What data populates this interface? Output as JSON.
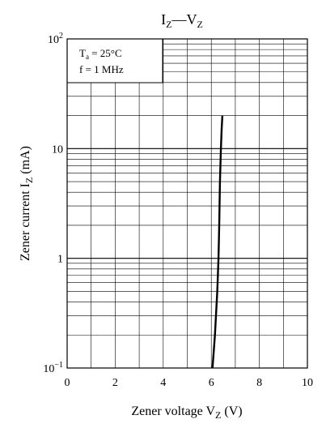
{
  "chart_data": {
    "type": "line",
    "title": "I_Z — V_Z",
    "title_parts": {
      "main1": "I",
      "sub1": "Z",
      "dash": "—",
      "main2": "V",
      "sub2": "Z"
    },
    "xlabel": "Zener voltage  V_Z  (V)",
    "xlabel_parts": {
      "main": "Zener voltage  V",
      "sub": "Z",
      "unit": "  (V)"
    },
    "ylabel": "Zener current  I_Z  (mA)",
    "ylabel_parts": {
      "main": "Zener current  I",
      "sub": "Z",
      "unit": "  (mA)"
    },
    "x_scale": "linear",
    "y_scale": "log",
    "xlim": [
      0,
      10
    ],
    "ylim": [
      0.1,
      100
    ],
    "x_ticks": [
      "0",
      "2",
      "4",
      "6",
      "8",
      "10"
    ],
    "y_ticks": [
      {
        "value": 0.1,
        "base": "10",
        "exp": "−1"
      },
      {
        "value": 1,
        "base": "1",
        "exp": ""
      },
      {
        "value": 10,
        "base": "10",
        "exp": ""
      },
      {
        "value": 100,
        "base": "10",
        "exp": "2"
      }
    ],
    "grid": true,
    "conditions": {
      "ta_main": "T",
      "ta_sub": "a",
      "ta_rest": " = 25°C",
      "freq": "f = 1 MHz"
    },
    "series": [
      {
        "x": [
          6.05,
          6.15,
          6.25,
          6.3,
          6.33,
          6.36,
          6.4,
          6.43,
          6.46
        ],
        "y": [
          0.1,
          0.2,
          0.5,
          1,
          2,
          5,
          10,
          15,
          20
        ]
      }
    ],
    "colors": {
      "line": "#000000",
      "grid": "#000000"
    }
  }
}
